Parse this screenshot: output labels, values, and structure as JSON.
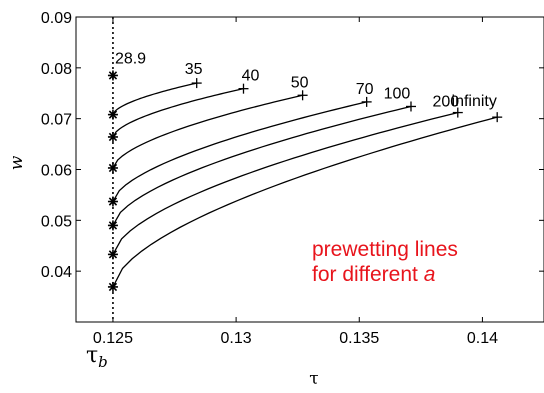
{
  "chart_data": {
    "type": "line",
    "title": "",
    "xlabel": "τ",
    "ylabel": "w",
    "xlim": [
      0.1235,
      0.1425
    ],
    "ylim": [
      0.03,
      0.09
    ],
    "xticks": [
      0.125,
      0.13,
      0.135,
      0.14
    ],
    "xtick_labels": [
      "0.125",
      "0.13",
      "0.135",
      "0.14"
    ],
    "yticks": [
      0.04,
      0.05,
      0.06,
      0.07,
      0.08,
      0.09
    ],
    "ytick_labels": [
      "0.04",
      "0.05",
      "0.06",
      "0.07",
      "0.08",
      "0.09"
    ],
    "grid": false,
    "vline": {
      "x": 0.125,
      "label": "τ",
      "label_sub": "b"
    },
    "annotation": {
      "line1": "prewetting lines",
      "line2_prefix": "for different ",
      "line2_var": "a",
      "color": "#e8141c"
    },
    "start_markers_y": [
      0.0785,
      0.0708,
      0.0664,
      0.0603,
      0.0537,
      0.049,
      0.0433,
      0.0369
    ],
    "series": [
      {
        "name": "28.9",
        "start": [
          0.125,
          0.0785
        ],
        "end": [
          0.125,
          0.0785
        ]
      },
      {
        "name": "35",
        "start": [
          0.125,
          0.0708
        ],
        "end": [
          0.1284,
          0.077
        ]
      },
      {
        "name": "40",
        "start": [
          0.125,
          0.0664
        ],
        "end": [
          0.1303,
          0.0759
        ]
      },
      {
        "name": "50",
        "start": [
          0.125,
          0.0603
        ],
        "end": [
          0.1327,
          0.0746
        ]
      },
      {
        "name": "70",
        "start": [
          0.125,
          0.0537
        ],
        "end": [
          0.1353,
          0.0733
        ]
      },
      {
        "name": "100",
        "start": [
          0.125,
          0.049
        ],
        "end": [
          0.1371,
          0.0724
        ]
      },
      {
        "name": "200",
        "start": [
          0.125,
          0.0433
        ],
        "end": [
          0.139,
          0.0712
        ]
      },
      {
        "name": "infinity",
        "start": [
          0.125,
          0.0369
        ],
        "end": [
          0.1406,
          0.0703
        ]
      }
    ]
  }
}
